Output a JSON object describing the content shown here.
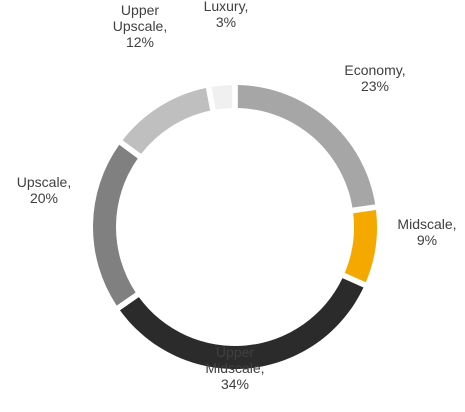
{
  "chart_data": {
    "type": "donut",
    "categories": [
      "Economy,",
      "Midscale,",
      "Upper Midscale,",
      "Upscale,",
      "Upper Upscale,",
      "Luxury,"
    ],
    "values": [
      23,
      9,
      34,
      20,
      12,
      3
    ],
    "value_labels": [
      "23%",
      "9%",
      "34%",
      "20%",
      "12%",
      "3%"
    ],
    "colors": [
      "#a6a6a6",
      "#f5a800",
      "#2b2b2b",
      "#808080",
      "#bfbfbf",
      "#f0f0f0"
    ]
  }
}
